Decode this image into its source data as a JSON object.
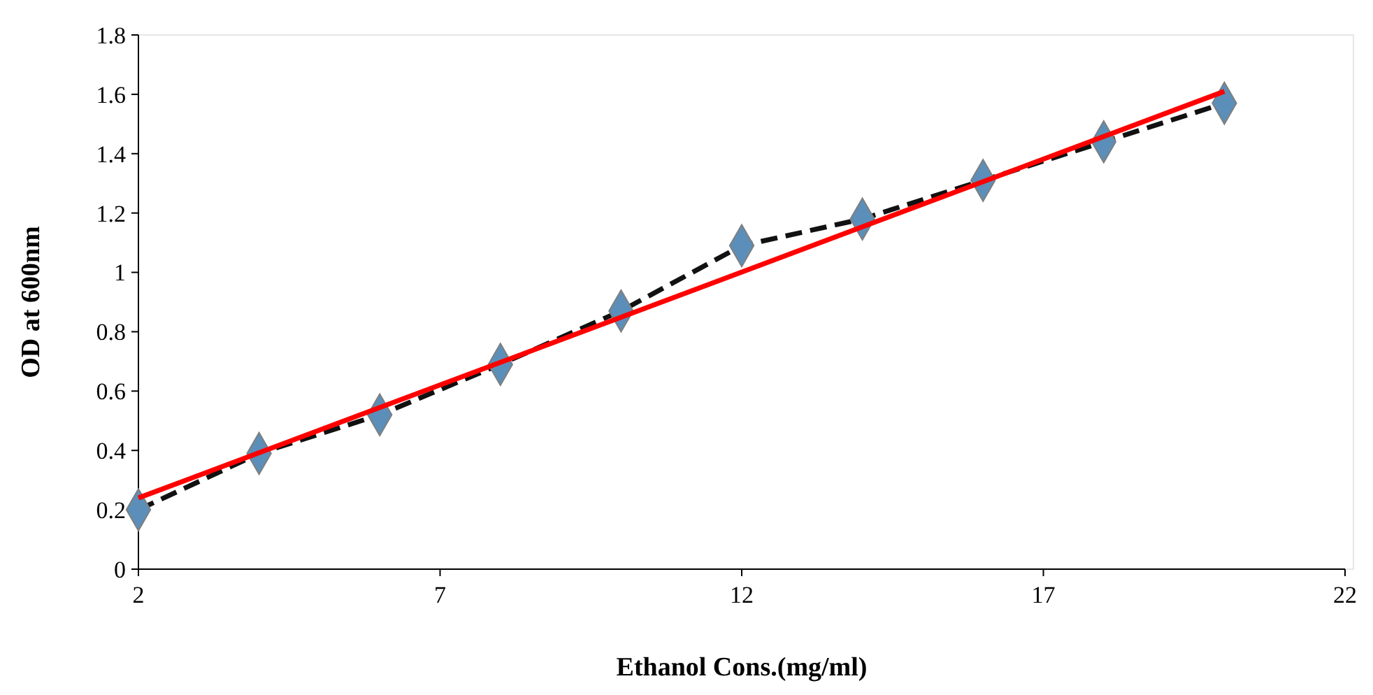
{
  "chart_data": {
    "type": "line",
    "xlabel": "Ethanol Cons.(mg/ml)",
    "ylabel": "OD at 600nm",
    "x": [
      2,
      4,
      6,
      8,
      10,
      12,
      14,
      16,
      18,
      20
    ],
    "xlim": [
      2,
      22
    ],
    "xticks": [
      2,
      7,
      12,
      17,
      22
    ],
    "ylim": [
      0,
      1.8
    ],
    "yticks": [
      0,
      0.2,
      0.4,
      0.6,
      0.8,
      1,
      1.2,
      1.4,
      1.6,
      1.8
    ],
    "grid": false,
    "series": [
      {
        "color": "#111111",
        "colors": [
          "#5b8fb9",
          "#5b8fb9",
          "#5b8fb9",
          "#5b8fb9",
          "#5b8fb9",
          "#5b8fb9",
          "#5b8fb9",
          "#5b8fb9",
          "#5b8fb9",
          "#5b8fb9"
        ],
        "values": [
          0.2,
          0.39,
          0.52,
          0.69,
          0.87,
          1.09,
          1.18,
          1.31,
          1.44,
          1.57
        ],
        "marker": "diamond",
        "line_style": "dashed"
      },
      {
        "x": [
          2,
          20
        ],
        "color": "#ff0000",
        "values": [
          0.24,
          1.61
        ],
        "marker": "none",
        "line_style": "solid"
      }
    ]
  }
}
